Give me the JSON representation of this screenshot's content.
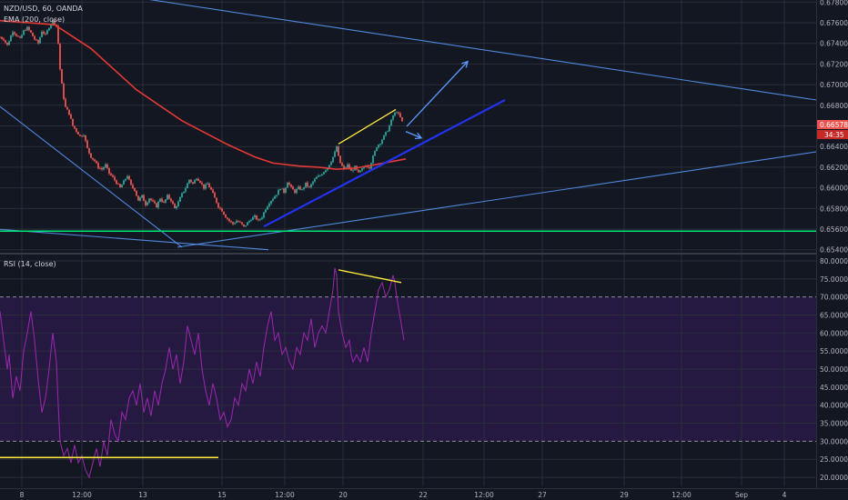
{
  "header": {
    "symbol_line": "NZD/USD, 60, OANDA",
    "ema_line": "EMA (200, close)",
    "rsi_line": "RSI (14, close)"
  },
  "colors": {
    "background": "#131722",
    "grid": "#2a2e39",
    "candle_up": "#26a69a",
    "candle_down": "#ef5350",
    "ema": "#e53935",
    "rsi": "#9c27b0",
    "rsi_band": "#2a1a47",
    "support": "#00e676",
    "trendline": "#5b9bff",
    "bold_trend": "#2233ee",
    "divergence": "#ffeb3b",
    "price_badge": "#ef5350"
  },
  "price_panel": {
    "current_price": "0.66578",
    "countdown": "34:35",
    "y_ticks": [
      "0.67800",
      "0.67600",
      "0.67400",
      "0.67200",
      "0.67000",
      "0.66800",
      "0.66600",
      "0.66400",
      "0.66200",
      "0.66000",
      "0.65800",
      "0.65600",
      "0.65400"
    ]
  },
  "rsi_panel": {
    "y_ticks": [
      "80.0000",
      "75.0000",
      "70.0000",
      "65.0000",
      "60.0000",
      "55.0000",
      "50.0000",
      "45.0000",
      "40.0000",
      "35.0000",
      "30.0000",
      "25.0000",
      "20.0000"
    ]
  },
  "x_axis": {
    "ticks": [
      "8",
      "12:00",
      "13",
      "15",
      "12:00",
      "20",
      "22",
      "12:00",
      "27",
      "29",
      "12:00",
      "Sep",
      "4"
    ]
  },
  "chart_data": [
    {
      "type": "candlestick",
      "title": "NZD/USD, 60, OANDA",
      "ylim": [
        0.6538,
        0.6782
      ],
      "x_categories": [
        "8",
        "12:00",
        "13",
        "15",
        "12:00",
        "20",
        "22",
        "12:00",
        "27",
        "29",
        "12:00",
        "Sep",
        "4"
      ],
      "price_path": [
        [
          0,
          0.6746
        ],
        [
          4,
          0.6744
        ],
        [
          8,
          0.6738
        ],
        [
          14,
          0.6752
        ],
        [
          18,
          0.6748
        ],
        [
          22,
          0.6744
        ],
        [
          26,
          0.6752
        ],
        [
          30,
          0.6755
        ],
        [
          34,
          0.675
        ],
        [
          38,
          0.6744
        ],
        [
          42,
          0.674
        ],
        [
          46,
          0.6752
        ],
        [
          50,
          0.6748
        ],
        [
          54,
          0.6756
        ],
        [
          58,
          0.6762
        ],
        [
          62,
          0.6757
        ],
        [
          64,
          0.674
        ],
        [
          66,
          0.6715
        ],
        [
          68,
          0.67
        ],
        [
          70,
          0.6687
        ],
        [
          72,
          0.6678
        ],
        [
          76,
          0.6672
        ],
        [
          80,
          0.666
        ],
        [
          84,
          0.6655
        ],
        [
          88,
          0.665
        ],
        [
          92,
          0.6652
        ],
        [
          96,
          0.6638
        ],
        [
          100,
          0.663
        ],
        [
          104,
          0.6626
        ],
        [
          108,
          0.662
        ],
        [
          112,
          0.6618
        ],
        [
          116,
          0.6622
        ],
        [
          120,
          0.6614
        ],
        [
          124,
          0.661
        ],
        [
          128,
          0.6605
        ],
        [
          132,
          0.66
        ],
        [
          136,
          0.6606
        ],
        [
          140,
          0.6612
        ],
        [
          144,
          0.6602
        ],
        [
          148,
          0.6598
        ],
        [
          152,
          0.6588
        ],
        [
          156,
          0.6592
        ],
        [
          160,
          0.6584
        ],
        [
          164,
          0.659
        ],
        [
          168,
          0.6586
        ],
        [
          172,
          0.6582
        ],
        [
          176,
          0.659
        ],
        [
          180,
          0.6585
        ],
        [
          184,
          0.6592
        ],
        [
          188,
          0.6588
        ],
        [
          192,
          0.658
        ],
        [
          196,
          0.6586
        ],
        [
          200,
          0.6594
        ],
        [
          204,
          0.66
        ],
        [
          208,
          0.6608
        ],
        [
          212,
          0.6604
        ],
        [
          216,
          0.661
        ],
        [
          220,
          0.6606
        ],
        [
          224,
          0.66
        ],
        [
          228,
          0.6604
        ],
        [
          232,
          0.6598
        ],
        [
          236,
          0.659
        ],
        [
          240,
          0.6582
        ],
        [
          244,
          0.6578
        ],
        [
          248,
          0.6572
        ],
        [
          252,
          0.6568
        ],
        [
          256,
          0.6565
        ],
        [
          260,
          0.6568
        ],
        [
          264,
          0.6566
        ],
        [
          268,
          0.6562
        ],
        [
          272,
          0.6566
        ],
        [
          276,
          0.657
        ],
        [
          280,
          0.6572
        ],
        [
          284,
          0.6568
        ],
        [
          288,
          0.6572
        ],
        [
          292,
          0.658
        ],
        [
          296,
          0.6586
        ],
        [
          300,
          0.659
        ],
        [
          304,
          0.6594
        ],
        [
          308,
          0.66
        ],
        [
          312,
          0.6596
        ],
        [
          316,
          0.6606
        ],
        [
          320,
          0.66
        ],
        [
          324,
          0.6596
        ],
        [
          328,
          0.66
        ],
        [
          332,
          0.6598
        ],
        [
          336,
          0.6604
        ],
        [
          340,
          0.66
        ],
        [
          344,
          0.6606
        ],
        [
          348,
          0.661
        ],
        [
          352,
          0.6612
        ],
        [
          356,
          0.6616
        ],
        [
          360,
          0.662
        ],
        [
          364,
          0.6626
        ],
        [
          368,
          0.6634
        ],
        [
          370,
          0.664
        ],
        [
          372,
          0.663
        ],
        [
          374,
          0.6624
        ],
        [
          378,
          0.6618
        ],
        [
          382,
          0.6622
        ],
        [
          386,
          0.6616
        ],
        [
          390,
          0.662
        ],
        [
          394,
          0.6614
        ],
        [
          398,
          0.6618
        ],
        [
          402,
          0.6622
        ],
        [
          406,
          0.662
        ],
        [
          410,
          0.663
        ],
        [
          414,
          0.664
        ],
        [
          418,
          0.6644
        ],
        [
          422,
          0.665
        ],
        [
          426,
          0.6656
        ],
        [
          428,
          0.666
        ],
        [
          432,
          0.667
        ],
        [
          436,
          0.6674
        ],
        [
          440,
          0.6668
        ],
        [
          444,
          0.666
        ]
      ],
      "ema_200": [
        [
          0,
          0.6762
        ],
        [
          60,
          0.6758
        ],
        [
          100,
          0.6735
        ],
        [
          150,
          0.6695
        ],
        [
          200,
          0.6665
        ],
        [
          250,
          0.6642
        ],
        [
          280,
          0.663
        ],
        [
          300,
          0.6624
        ],
        [
          330,
          0.6621
        ],
        [
          350,
          0.662
        ],
        [
          370,
          0.6618
        ],
        [
          390,
          0.6619
        ],
        [
          410,
          0.6622
        ],
        [
          446,
          0.6628
        ]
      ],
      "lines": [
        {
          "kind": "trend",
          "from": [
            145,
            0.6785
          ],
          "to": [
            932,
            0.66805
          ]
        },
        {
          "kind": "trend",
          "from": [
            0,
            0.66788
          ],
          "to": [
            200,
            0.65425
          ]
        },
        {
          "kind": "trend",
          "from": [
            0,
            0.65598
          ],
          "to": [
            295,
            0.654
          ]
        },
        {
          "kind": "trend",
          "from": [
            195,
            0.65425
          ],
          "to": [
            932,
            0.66395
          ]
        },
        {
          "kind": "support",
          "from": [
            0,
            0.6558
          ],
          "to": [
            932,
            0.6558
          ]
        },
        {
          "kind": "bold_trend",
          "from": [
            290,
            0.65625
          ],
          "to": [
            555,
            0.66851
          ]
        },
        {
          "kind": "divergence",
          "from": [
            372,
            0.66425
          ],
          "to": [
            435,
            0.66759
          ]
        },
        {
          "kind": "arrow",
          "from": [
            447,
            0.66595
          ],
          "to": [
            514,
            0.67224
          ]
        },
        {
          "kind": "arrow",
          "from": [
            446,
            0.66546
          ],
          "to": [
            463,
            0.66483
          ]
        }
      ]
    },
    {
      "type": "line",
      "title": "RSI (14, close)",
      "ylim": [
        17.5,
        81.5
      ],
      "overbought": 70,
      "oversold": 30,
      "series": [
        {
          "name": "RSI (14, close)",
          "points": [
            [
              0,
              66
            ],
            [
              4,
              58
            ],
            [
              8,
              50
            ],
            [
              10,
              54
            ],
            [
              14,
              42
            ],
            [
              18,
              48
            ],
            [
              22,
              44
            ],
            [
              26,
              55
            ],
            [
              30,
              60
            ],
            [
              34,
              66
            ],
            [
              38,
              58
            ],
            [
              42,
              47
            ],
            [
              46,
              38
            ],
            [
              50,
              42
            ],
            [
              54,
              50
            ],
            [
              58,
              60
            ],
            [
              62,
              52
            ],
            [
              64,
              40
            ],
            [
              66,
              30
            ],
            [
              70,
              26
            ],
            [
              74,
              28
            ],
            [
              78,
              24
            ],
            [
              82,
              29
            ],
            [
              86,
              24
            ],
            [
              90,
              26
            ],
            [
              94,
              22
            ],
            [
              98,
              20
            ],
            [
              102,
              24
            ],
            [
              106,
              28
            ],
            [
              110,
              23
            ],
            [
              114,
              30
            ],
            [
              118,
              26
            ],
            [
              122,
              36
            ],
            [
              126,
              32
            ],
            [
              130,
              30
            ],
            [
              134,
              38
            ],
            [
              138,
              36
            ],
            [
              142,
              42
            ],
            [
              146,
              44
            ],
            [
              150,
              40
            ],
            [
              154,
              46
            ],
            [
              158,
              38
            ],
            [
              162,
              42
            ],
            [
              166,
              37
            ],
            [
              170,
              44
            ],
            [
              174,
              40
            ],
            [
              178,
              46
            ],
            [
              182,
              50
            ],
            [
              186,
              56
            ],
            [
              190,
              50
            ],
            [
              194,
              54
            ],
            [
              198,
              46
            ],
            [
              202,
              52
            ],
            [
              206,
              62
            ],
            [
              210,
              58
            ],
            [
              214,
              54
            ],
            [
              218,
              60
            ],
            [
              222,
              50
            ],
            [
              226,
              44
            ],
            [
              230,
              40
            ],
            [
              234,
              46
            ],
            [
              238,
              42
            ],
            [
              242,
              36
            ],
            [
              246,
              38
            ],
            [
              250,
              34
            ],
            [
              254,
              36
            ],
            [
              258,
              42
            ],
            [
              262,
              40
            ],
            [
              266,
              46
            ],
            [
              270,
              44
            ],
            [
              274,
              50
            ],
            [
              278,
              46
            ],
            [
              282,
              52
            ],
            [
              286,
              48
            ],
            [
              290,
              56
            ],
            [
              294,
              62
            ],
            [
              298,
              66
            ],
            [
              302,
              58
            ],
            [
              306,
              60
            ],
            [
              310,
              54
            ],
            [
              314,
              56
            ],
            [
              318,
              52
            ],
            [
              322,
              50
            ],
            [
              326,
              56
            ],
            [
              330,
              54
            ],
            [
              334,
              60
            ],
            [
              338,
              58
            ],
            [
              342,
              64
            ],
            [
              346,
              56
            ],
            [
              350,
              60
            ],
            [
              354,
              62
            ],
            [
              358,
              60
            ],
            [
              362,
              66
            ],
            [
              366,
              72
            ],
            [
              368,
              78
            ],
            [
              370,
              76
            ],
            [
              372,
              66
            ],
            [
              376,
              60
            ],
            [
              380,
              56
            ],
            [
              384,
              58
            ],
            [
              386,
              54
            ],
            [
              388,
              52
            ],
            [
              392,
              54
            ],
            [
              396,
              52
            ],
            [
              400,
              56
            ],
            [
              404,
              52
            ],
            [
              408,
              60
            ],
            [
              412,
              66
            ],
            [
              416,
              72
            ],
            [
              420,
              74
            ],
            [
              424,
              70
            ],
            [
              428,
              72
            ],
            [
              432,
              76
            ],
            [
              434,
              74
            ],
            [
              436,
              70
            ],
            [
              440,
              64
            ],
            [
              444,
              58
            ]
          ]
        }
      ],
      "lines": [
        {
          "kind": "divergence",
          "from": [
            372,
            77.5
          ],
          "to": [
            441,
            74.0
          ]
        },
        {
          "kind": "divergence",
          "from": [
            0,
            25.5
          ],
          "to": [
            240,
            25.5
          ]
        }
      ]
    }
  ]
}
